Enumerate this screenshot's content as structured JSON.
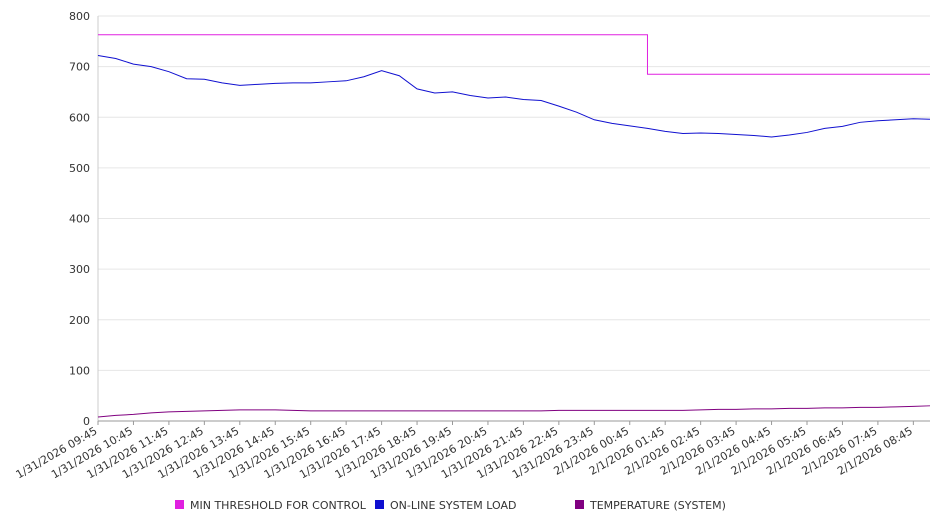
{
  "chart_data": {
    "type": "line",
    "title": "",
    "xlabel": "",
    "ylabel": "",
    "ylim": [
      0,
      800
    ],
    "y_ticks": [
      "0",
      "100",
      "200",
      "300",
      "400",
      "500",
      "600",
      "700",
      "800"
    ],
    "grid": "horizontal",
    "legend_position": "bottom",
    "x_tick_labels": [
      "1/31/2026 09:45",
      "1/31/2026 10:45",
      "1/31/2026 11:45",
      "1/31/2026 12:45",
      "1/31/2026 13:45",
      "1/31/2026 14:45",
      "1/31/2026 15:45",
      "1/31/2026 16:45",
      "1/31/2026 17:45",
      "1/31/2026 18:45",
      "1/31/2026 19:45",
      "1/31/2026 20:45",
      "1/31/2026 21:45",
      "1/31/2026 22:45",
      "1/31/2026 23:45",
      "2/1/2026 00:45",
      "2/1/2026 01:45",
      "2/1/2026 02:45",
      "2/1/2026 03:45",
      "2/1/2026 04:45",
      "2/1/2026 05:45",
      "2/1/2026 06:45",
      "2/1/2026 07:45",
      "2/1/2026 08:45"
    ],
    "x": [
      "1/31/2026 09:45",
      "1/31/2026 10:15",
      "1/31/2026 10:45",
      "1/31/2026 11:15",
      "1/31/2026 11:45",
      "1/31/2026 12:15",
      "1/31/2026 12:45",
      "1/31/2026 13:15",
      "1/31/2026 13:45",
      "1/31/2026 14:15",
      "1/31/2026 14:45",
      "1/31/2026 15:15",
      "1/31/2026 15:45",
      "1/31/2026 16:15",
      "1/31/2026 16:45",
      "1/31/2026 17:15",
      "1/31/2026 17:45",
      "1/31/2026 18:15",
      "1/31/2026 18:45",
      "1/31/2026 19:15",
      "1/31/2026 19:45",
      "1/31/2026 20:15",
      "1/31/2026 20:45",
      "1/31/2026 21:15",
      "1/31/2026 21:45",
      "1/31/2026 22:15",
      "1/31/2026 22:45",
      "1/31/2026 23:15",
      "1/31/2026 23:45",
      "2/1/2026 00:15",
      "2/1/2026 00:45",
      "2/1/2026 01:15",
      "2/1/2026 01:45",
      "2/1/2026 02:15",
      "2/1/2026 02:45",
      "2/1/2026 03:15",
      "2/1/2026 03:45",
      "2/1/2026 04:15",
      "2/1/2026 04:45",
      "2/1/2026 05:15",
      "2/1/2026 05:45",
      "2/1/2026 06:15",
      "2/1/2026 06:45",
      "2/1/2026 07:15",
      "2/1/2026 07:45",
      "2/1/2026 08:15",
      "2/1/2026 08:45",
      "2/1/2026 09:15"
    ],
    "series": [
      {
        "name": "MIN THRESHOLD FOR CONTROL",
        "color": "#e020e0",
        "values": [
          763,
          763,
          763,
          763,
          763,
          763,
          763,
          763,
          763,
          763,
          763,
          763,
          763,
          763,
          763,
          763,
          763,
          763,
          763,
          763,
          763,
          763,
          763,
          763,
          763,
          763,
          763,
          763,
          763,
          763,
          763,
          685,
          685,
          685,
          685,
          685,
          685,
          685,
          685,
          685,
          685,
          685,
          685,
          685,
          685,
          685,
          685,
          685
        ]
      },
      {
        "name": "ON-LINE SYSTEM LOAD",
        "color": "#1010d0",
        "values": [
          722,
          716,
          705,
          700,
          690,
          676,
          675,
          668,
          663,
          665,
          667,
          668,
          668,
          670,
          672,
          680,
          692,
          682,
          656,
          648,
          650,
          643,
          638,
          640,
          635,
          633,
          622,
          610,
          595,
          588,
          583,
          578,
          572,
          568,
          569,
          568,
          566,
          564,
          561,
          565,
          570,
          578,
          582,
          590,
          593,
          595,
          597,
          596
        ]
      },
      {
        "name": "TEMPERATURE (SYSTEM)",
        "color": "#800080",
        "values": [
          8,
          11,
          13,
          16,
          18,
          19,
          20,
          21,
          22,
          22,
          22,
          21,
          20,
          20,
          20,
          20,
          20,
          20,
          20,
          20,
          20,
          20,
          20,
          20,
          20,
          20,
          21,
          21,
          21,
          21,
          21,
          21,
          21,
          21,
          22,
          23,
          23,
          24,
          24,
          25,
          25,
          26,
          26,
          27,
          27,
          28,
          29,
          30
        ]
      }
    ]
  }
}
